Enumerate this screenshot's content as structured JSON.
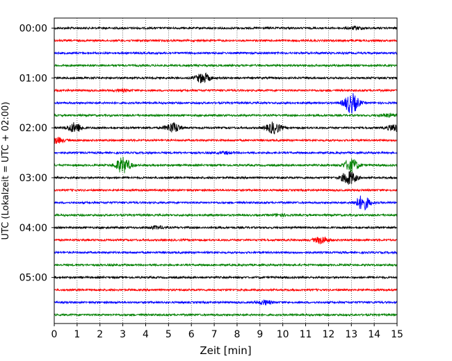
{
  "chart_data": {
    "type": "line",
    "title": "",
    "xlabel": "Zeit  [min]",
    "ylabel": "UTC (Lokalzeit = UTC + 02:00)",
    "xlim": [
      0,
      15
    ],
    "xticks": [
      0,
      1,
      2,
      3,
      4,
      5,
      6,
      7,
      8,
      9,
      10,
      11,
      12,
      13,
      14,
      15
    ],
    "grid": "vertical dotted",
    "ytick_labels": [
      "00:00",
      "01:00",
      "02:00",
      "03:00",
      "04:00",
      "05:00"
    ],
    "trace_interval_minutes": 15,
    "colors": [
      "#000000",
      "#ff0000",
      "#0000ff",
      "#008000"
    ],
    "series": [
      {
        "start": "00:00",
        "color": "#000000",
        "events": [
          {
            "t": 13.2,
            "amp": 2
          }
        ]
      },
      {
        "start": "00:15",
        "color": "#ff0000",
        "events": []
      },
      {
        "start": "00:30",
        "color": "#0000ff",
        "events": []
      },
      {
        "start": "00:45",
        "color": "#008000",
        "events": []
      },
      {
        "start": "01:00",
        "color": "#000000",
        "events": [
          {
            "t": 6.5,
            "amp": 7
          }
        ]
      },
      {
        "start": "01:15",
        "color": "#ff0000",
        "events": [
          {
            "t": 3.0,
            "amp": 1.5
          }
        ]
      },
      {
        "start": "01:30",
        "color": "#0000ff",
        "events": [
          {
            "t": 13.0,
            "amp": 14
          }
        ]
      },
      {
        "start": "01:45",
        "color": "#008000",
        "events": [
          {
            "t": 14.6,
            "amp": 2
          }
        ]
      },
      {
        "start": "02:00",
        "color": "#000000",
        "events": [
          {
            "t": 0.9,
            "amp": 7
          },
          {
            "t": 5.2,
            "amp": 7
          },
          {
            "t": 9.6,
            "amp": 8
          },
          {
            "t": 14.9,
            "amp": 5
          }
        ]
      },
      {
        "start": "02:15",
        "color": "#ff0000",
        "events": [
          {
            "t": 0.1,
            "amp": 4
          }
        ]
      },
      {
        "start": "02:30",
        "color": "#0000ff",
        "events": [
          {
            "t": 7.5,
            "amp": 1.5
          }
        ]
      },
      {
        "start": "02:45",
        "color": "#008000",
        "events": [
          {
            "t": 3.0,
            "amp": 11
          },
          {
            "t": 13.0,
            "amp": 9
          }
        ]
      },
      {
        "start": "03:00",
        "color": "#000000",
        "events": [
          {
            "t": 12.9,
            "amp": 10
          }
        ]
      },
      {
        "start": "03:15",
        "color": "#ff0000",
        "events": []
      },
      {
        "start": "03:30",
        "color": "#0000ff",
        "events": [
          {
            "t": 13.5,
            "amp": 10
          }
        ]
      },
      {
        "start": "03:45",
        "color": "#008000",
        "events": [
          {
            "t": 9.9,
            "amp": 1.5
          }
        ]
      },
      {
        "start": "04:00",
        "color": "#000000",
        "events": [
          {
            "t": 4.5,
            "amp": 2
          }
        ]
      },
      {
        "start": "04:15",
        "color": "#ff0000",
        "events": [
          {
            "t": 11.7,
            "amp": 5
          }
        ]
      },
      {
        "start": "04:30",
        "color": "#0000ff",
        "events": []
      },
      {
        "start": "04:45",
        "color": "#008000",
        "events": []
      },
      {
        "start": "05:00",
        "color": "#000000",
        "events": []
      },
      {
        "start": "05:15",
        "color": "#ff0000",
        "events": []
      },
      {
        "start": "05:30",
        "color": "#0000ff",
        "events": [
          {
            "t": 9.2,
            "amp": 3
          }
        ]
      },
      {
        "start": "05:45",
        "color": "#008000",
        "events": []
      }
    ]
  }
}
